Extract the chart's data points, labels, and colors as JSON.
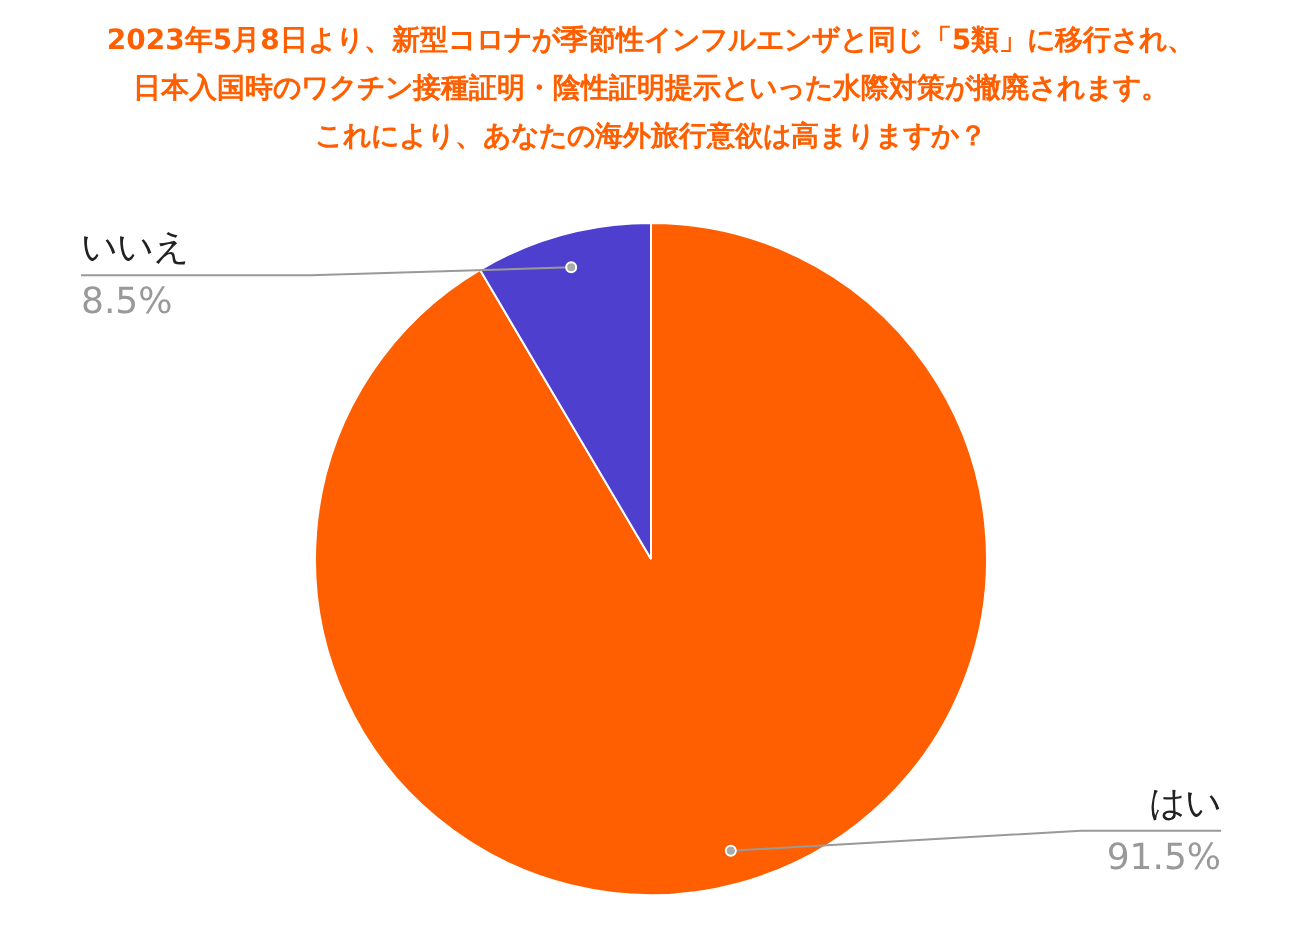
{
  "chart_data": {
    "type": "pie",
    "title": "2023年5月8日より、新型コロナが季節性インフルエンザと同じ「5類」に移行され、日本入国時のワクチン接種証明・陰性証明提示といった水際対策が撤廃されます。",
    "subtitle": "これにより、あなたの海外旅行意欲は高まりますか？",
    "categories": [
      "はい",
      "いいえ"
    ],
    "values": [
      91.5,
      8.5
    ],
    "colors": [
      "#ff5f00",
      "#4f3fcf"
    ],
    "value_labels": [
      "91.5%",
      "8.5%"
    ]
  }
}
